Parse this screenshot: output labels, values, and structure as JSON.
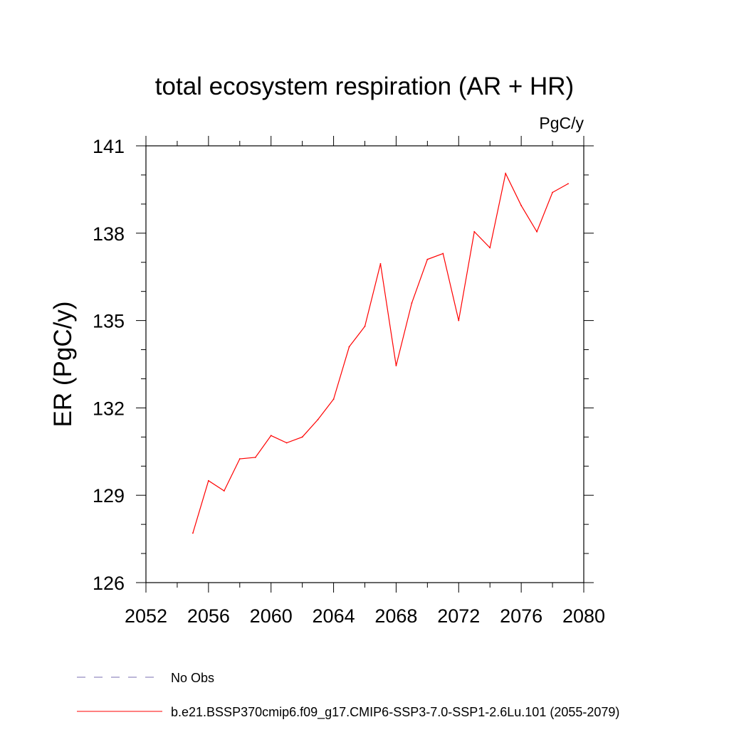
{
  "chart_data": {
    "type": "line",
    "title": "total ecosystem respiration (AR + HR)",
    "units_label": "PgC/y",
    "ylabel": "ER  (PgC/y)",
    "xlabel": "",
    "xlim": [
      2052,
      2080
    ],
    "ylim": [
      126,
      141
    ],
    "xticks": [
      2052,
      2056,
      2060,
      2064,
      2068,
      2072,
      2076,
      2080
    ],
    "xtick_labels": [
      "2052",
      "2056",
      "2060",
      "2064",
      "2068",
      "2072",
      "2076",
      "2080"
    ],
    "yticks": [
      126,
      129,
      132,
      135,
      138,
      141
    ],
    "ytick_labels": [
      "126",
      "129",
      "132",
      "135",
      "138",
      "141"
    ],
    "x_minor_step": 2,
    "y_minor_step": 1,
    "grid": false,
    "legend_position": "bottom",
    "series": [
      {
        "name": "b.e21.BSSP370cmip6.f09_g17.CMIP6-SSP3-7.0-SSP1-2.6Lu.101 (2055-2079)",
        "color": "#ff0000",
        "style": "solid",
        "x": [
          2055,
          2056,
          2057,
          2058,
          2059,
          2060,
          2061,
          2062,
          2063,
          2064,
          2065,
          2066,
          2067,
          2068,
          2069,
          2070,
          2071,
          2072,
          2073,
          2074,
          2075,
          2076,
          2077,
          2078,
          2079
        ],
        "y": [
          127.7,
          129.5,
          129.15,
          130.25,
          130.3,
          131.05,
          130.8,
          131.0,
          131.6,
          132.3,
          134.1,
          134.8,
          136.95,
          133.45,
          135.6,
          137.1,
          137.3,
          135.0,
          138.05,
          137.5,
          140.05,
          138.95,
          138.05,
          139.4,
          139.7
        ]
      }
    ],
    "legend": [
      {
        "label": "No Obs",
        "color": "#7a6fb0",
        "style": "dashed"
      },
      {
        "label": "b.e21.BSSP370cmip6.f09_g17.CMIP6-SSP3-7.0-SSP1-2.6Lu.101 (2055-2079)",
        "color": "#ff0000",
        "style": "solid"
      }
    ]
  }
}
